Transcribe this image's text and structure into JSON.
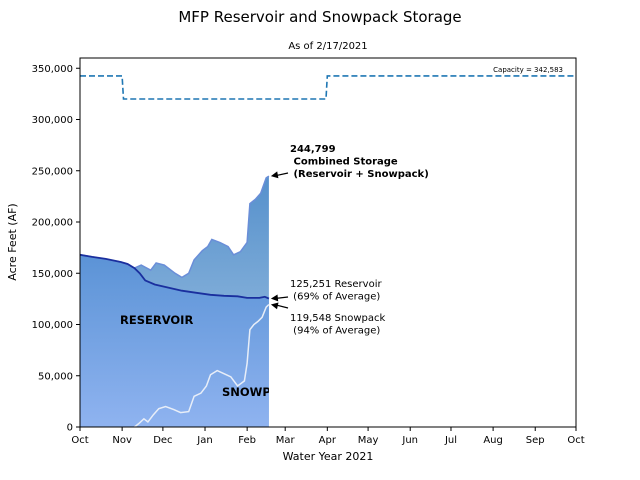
{
  "chart_data": {
    "type": "area",
    "title": "MFP Reservoir and Snowpack Storage",
    "subtitle": "As of 2/17/2021",
    "xlabel": "Water Year 2021",
    "ylabel": "Acre Feet (AF)",
    "xlim": [
      "2020-10-01",
      "2021-10-01"
    ],
    "ylim": [
      0,
      360000
    ],
    "x_tick_labels": [
      "Oct",
      "Nov",
      "Dec",
      "Jan",
      "Feb",
      "Mar",
      "Apr",
      "May",
      "Jun",
      "Jul",
      "Aug",
      "Sep",
      "Oct"
    ],
    "y_ticks": [
      0,
      50000,
      100000,
      150000,
      200000,
      250000,
      300000,
      350000
    ],
    "y_tick_labels": [
      "0",
      "50,000",
      "100,000",
      "150,000",
      "200,000",
      "250,000",
      "300,000",
      "350,000"
    ],
    "grid": false,
    "capacity": {
      "label": "Capacity = 342,583",
      "color": "#1f77b4",
      "points": [
        {
          "x": "2020-10-01",
          "y": 342583
        },
        {
          "x": "2020-11-01",
          "y": 342583
        },
        {
          "x": "2020-11-02",
          "y": 320000
        },
        {
          "x": "2021-03-31",
          "y": 320000
        },
        {
          "x": "2021-04-01",
          "y": 342583
        },
        {
          "x": "2021-10-01",
          "y": 342583
        }
      ]
    },
    "series": [
      {
        "name": "RESERVOIR",
        "color": "#1a2f9e",
        "points": [
          {
            "x": "2020-10-01",
            "y": 168000
          },
          {
            "x": "2020-10-10",
            "y": 166000
          },
          {
            "x": "2020-10-20",
            "y": 164000
          },
          {
            "x": "2020-10-31",
            "y": 161000
          },
          {
            "x": "2020-11-05",
            "y": 159000
          },
          {
            "x": "2020-11-10",
            "y": 155000
          },
          {
            "x": "2020-11-14",
            "y": 150000
          },
          {
            "x": "2020-11-18",
            "y": 143000
          },
          {
            "x": "2020-11-25",
            "y": 139000
          },
          {
            "x": "2020-12-05",
            "y": 136000
          },
          {
            "x": "2020-12-15",
            "y": 133000
          },
          {
            "x": "2020-12-25",
            "y": 131000
          },
          {
            "x": "2021-01-05",
            "y": 129000
          },
          {
            "x": "2021-01-15",
            "y": 128000
          },
          {
            "x": "2021-01-25",
            "y": 127500
          },
          {
            "x": "2021-02-01",
            "y": 126000
          },
          {
            "x": "2021-02-10",
            "y": 126000
          },
          {
            "x": "2021-02-14",
            "y": 127000
          },
          {
            "x": "2021-02-17",
            "y": 125251
          }
        ]
      },
      {
        "name": "SNOWPACK",
        "color": "#e8eef8",
        "points": [
          {
            "x": "2020-11-10",
            "y": 0
          },
          {
            "x": "2020-11-13",
            "y": 3000
          },
          {
            "x": "2020-11-17",
            "y": 8000
          },
          {
            "x": "2020-11-20",
            "y": 5000
          },
          {
            "x": "2020-11-24",
            "y": 12000
          },
          {
            "x": "2020-11-28",
            "y": 18000
          },
          {
            "x": "2020-12-03",
            "y": 20000
          },
          {
            "x": "2020-12-09",
            "y": 17000
          },
          {
            "x": "2020-12-14",
            "y": 14000
          },
          {
            "x": "2020-12-20",
            "y": 15000
          },
          {
            "x": "2020-12-24",
            "y": 30000
          },
          {
            "x": "2020-12-29",
            "y": 33000
          },
          {
            "x": "2021-01-02",
            "y": 40000
          },
          {
            "x": "2021-01-05",
            "y": 51000
          },
          {
            "x": "2021-01-10",
            "y": 55000
          },
          {
            "x": "2021-01-15",
            "y": 52000
          },
          {
            "x": "2021-01-20",
            "y": 49000
          },
          {
            "x": "2021-01-25",
            "y": 40000
          },
          {
            "x": "2021-01-30",
            "y": 45000
          },
          {
            "x": "2021-02-01",
            "y": 62000
          },
          {
            "x": "2021-02-03",
            "y": 95000
          },
          {
            "x": "2021-02-06",
            "y": 100000
          },
          {
            "x": "2021-02-09",
            "y": 103000
          },
          {
            "x": "2021-02-12",
            "y": 107000
          },
          {
            "x": "2021-02-15",
            "y": 117000
          },
          {
            "x": "2021-02-17",
            "y": 119548
          }
        ]
      },
      {
        "name": "Combined Storage",
        "color": "#6a8ed8",
        "points": [
          {
            "x": "2020-10-01",
            "y": 168000
          },
          {
            "x": "2020-10-31",
            "y": 161000
          },
          {
            "x": "2020-11-10",
            "y": 155000
          },
          {
            "x": "2020-11-15",
            "y": 158000
          },
          {
            "x": "2020-11-22",
            "y": 153000
          },
          {
            "x": "2020-11-26",
            "y": 160000
          },
          {
            "x": "2020-12-02",
            "y": 158000
          },
          {
            "x": "2020-12-10",
            "y": 150000
          },
          {
            "x": "2020-12-15",
            "y": 146000
          },
          {
            "x": "2020-12-20",
            "y": 150000
          },
          {
            "x": "2020-12-24",
            "y": 163000
          },
          {
            "x": "2020-12-30",
            "y": 172000
          },
          {
            "x": "2021-01-03",
            "y": 176000
          },
          {
            "x": "2021-01-06",
            "y": 183000
          },
          {
            "x": "2021-01-12",
            "y": 180000
          },
          {
            "x": "2021-01-18",
            "y": 176000
          },
          {
            "x": "2021-01-22",
            "y": 168000
          },
          {
            "x": "2021-01-27",
            "y": 171000
          },
          {
            "x": "2021-02-01",
            "y": 180000
          },
          {
            "x": "2021-02-03",
            "y": 218000
          },
          {
            "x": "2021-02-07",
            "y": 222000
          },
          {
            "x": "2021-02-11",
            "y": 228000
          },
          {
            "x": "2021-02-15",
            "y": 243000
          },
          {
            "x": "2021-02-17",
            "y": 244799
          }
        ]
      }
    ],
    "labels": {
      "reservoir": "RESERVOIR",
      "snowpack": "SNOWPACK"
    },
    "annotations": [
      {
        "lines": [
          "244,799",
          " Combined Storage",
          " (Reservoir + Snowpack)"
        ],
        "bold": true,
        "target": {
          "x": "2021-02-17",
          "y": 244799
        }
      },
      {
        "lines": [
          "125,251 Reservoir",
          " (69% of Average)"
        ],
        "bold": false,
        "target": {
          "x": "2021-02-17",
          "y": 125251
        }
      },
      {
        "lines": [
          "119,548 Snowpack",
          " (94% of Average)"
        ],
        "bold": false,
        "target": {
          "x": "2021-02-17",
          "y": 119548
        }
      }
    ],
    "colors": {
      "reservoir_fill_top": "#5b93d6",
      "reservoir_fill_bottom": "#8fb3f0",
      "combined_fill_top": "#5590cc",
      "combined_fill_bottom": "#a8c8e4",
      "reservoir_label": "#0b1a8a",
      "arrow": "#000000"
    }
  }
}
